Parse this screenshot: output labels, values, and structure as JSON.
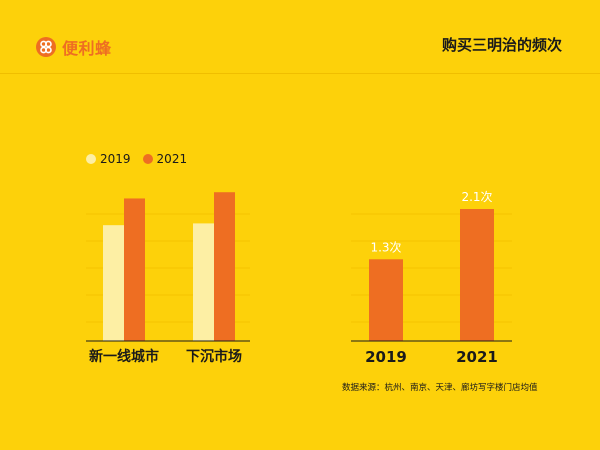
{
  "brand": {
    "name": "便利蜂"
  },
  "header": {
    "title": "购买三明治的频次"
  },
  "colors": {
    "background": "#FDD10A",
    "color_2019": "#FDEFA4",
    "color_2021": "#EE6E22",
    "grid": "#F5C400"
  },
  "legend": [
    {
      "label": "2019",
      "color": "#FDEFA4"
    },
    {
      "label": "2021",
      "color": "#EE6E22"
    }
  ],
  "chart_data": [
    {
      "type": "bar",
      "categories": [
        "新一线城市",
        "下沉市场"
      ],
      "series": [
        {
          "name": "2019",
          "values": [
            1.3,
            1.32
          ]
        },
        {
          "name": "2021",
          "values": [
            1.6,
            1.67
          ]
        }
      ],
      "ylim": [
        0,
        2.2
      ],
      "grid": true,
      "legend_position": "top-left"
    },
    {
      "type": "bar",
      "categories": [
        "2019",
        "2021"
      ],
      "values": [
        1.3,
        2.1
      ],
      "data_labels": [
        "1.3次",
        "2.1次"
      ],
      "ylim": [
        0,
        2.4
      ],
      "grid": true
    }
  ],
  "footnote": "数据来源：杭州、南京、天津、廊坊写字楼门店均值"
}
